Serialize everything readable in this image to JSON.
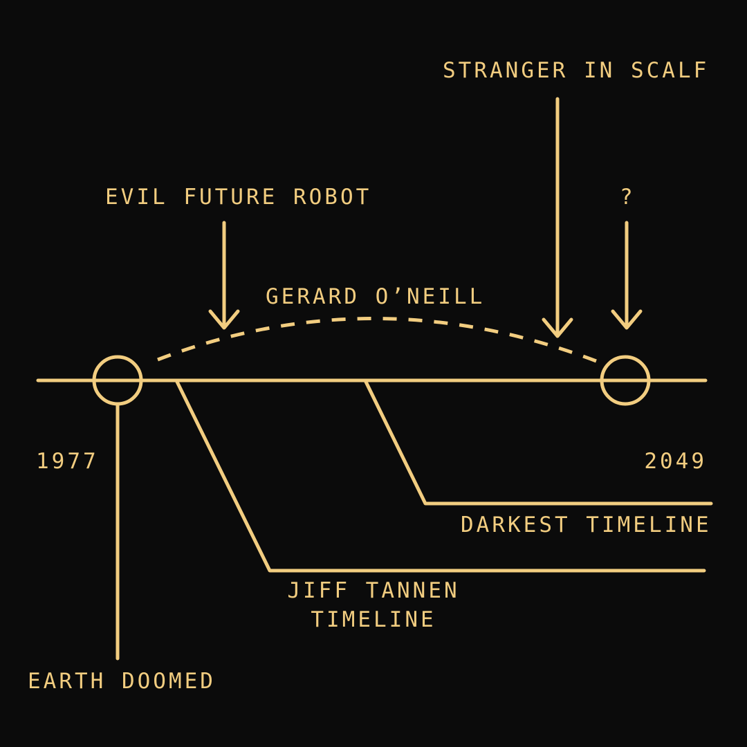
{
  "colors": {
    "background": "#0b0b0b",
    "ink": "#f2cd80"
  },
  "timeline": {
    "start_year": "1977",
    "end_year": "2049"
  },
  "labels": {
    "stranger": "STRANGER IN SCALF",
    "robot": "EVIL FUTURE ROBOT",
    "question": "?",
    "oneill": "GERARD O’NEILL",
    "darkest": "DARKEST TIMELINE",
    "jiff_line1": "JIFF TANNEN",
    "jiff_line2": "TIMELINE",
    "earth": "EARTH DOOMED"
  }
}
